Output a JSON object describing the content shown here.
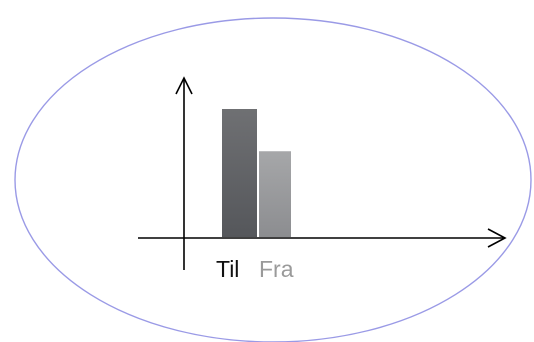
{
  "labels": {
    "til": "Til",
    "fra": "Fra"
  },
  "colors": {
    "ellipse_stroke": "#9a9ae6",
    "bar_til_top": "#6f7073",
    "bar_til_bottom": "#55575b",
    "bar_fra_top": "#a6a7a9",
    "bar_fra_bottom": "#8c8d90",
    "axis": "#000000",
    "label_til": "#111111",
    "label_fra": "#9a9a9a"
  },
  "chart_data": {
    "type": "bar",
    "categories": [
      "Til",
      "Fra"
    ],
    "values": [
      100,
      67
    ],
    "title": "",
    "xlabel": "",
    "ylabel": "",
    "ylim": [
      0,
      125
    ],
    "grid": false
  }
}
